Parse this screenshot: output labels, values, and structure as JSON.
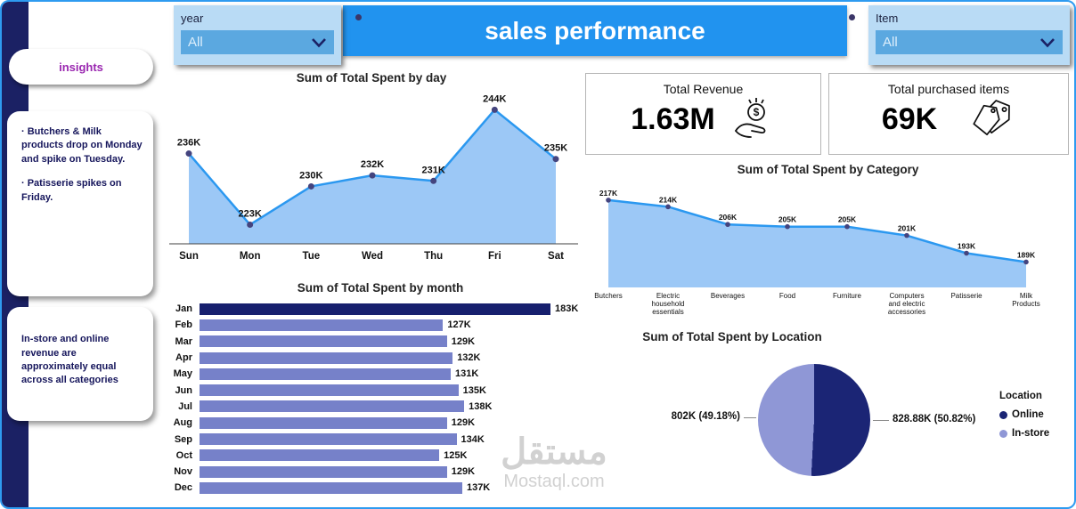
{
  "page": {
    "title": "sales performance"
  },
  "slicers": {
    "year": {
      "label": "year",
      "value": "All"
    },
    "item": {
      "label": "Item",
      "value": "All"
    }
  },
  "sidebar": {
    "button_label": "insights",
    "cards": [
      {
        "lines": [
          "· Butchers & Milk products drop on Monday and spike on Tuesday.",
          "· Patisserie spikes on Friday."
        ]
      },
      {
        "lines": [
          "In-store and online revenue are approximately equal across all categories"
        ]
      }
    ]
  },
  "kpis": [
    {
      "title": "Total Revenue",
      "value": "1.63M",
      "icon": "money-in-hand-icon"
    },
    {
      "title": "Total purchased items",
      "value": "69K",
      "icon": "price-tags-icon"
    }
  ],
  "chart_data": [
    {
      "type": "area",
      "title": "Sum of Total Spent by day",
      "categories": [
        "Sun",
        "Mon",
        "Tue",
        "Wed",
        "Thu",
        "Fri",
        "Sat"
      ],
      "values": [
        236,
        223,
        230,
        232,
        231,
        244,
        235
      ],
      "labels": [
        "236K",
        "223K",
        "230K",
        "232K",
        "231K",
        "244K",
        "235K"
      ],
      "ylim": [
        219.5,
        246.5
      ],
      "unit": "K"
    },
    {
      "type": "area",
      "title": "Sum of Total Spent by Category",
      "categories": [
        [
          "Butchers"
        ],
        [
          "Electric",
          "household",
          "essentials"
        ],
        [
          "Beverages"
        ],
        [
          "Food"
        ],
        [
          "Furniture"
        ],
        [
          "Computers",
          "and electric",
          "accessories"
        ],
        [
          "Patisserie"
        ],
        [
          "Milk",
          "Products"
        ]
      ],
      "values": [
        217,
        214,
        206,
        205,
        205,
        201,
        193,
        189
      ],
      "labels": [
        "217K",
        "214K",
        "206K",
        "205K",
        "205K",
        "201K",
        "193K",
        "189K"
      ],
      "ylim": [
        177.5,
        223
      ],
      "unit": "K"
    },
    {
      "type": "bar",
      "title": "Sum of Total Spent by month",
      "categories": [
        "Jan",
        "Feb",
        "Mar",
        "Apr",
        "May",
        "Jun",
        "Jul",
        "Aug",
        "Sep",
        "Oct",
        "Nov",
        "Dec"
      ],
      "values": [
        183,
        127,
        129,
        132,
        131,
        135,
        138,
        129,
        134,
        125,
        129,
        137
      ],
      "labels": [
        "183K",
        "127K",
        "129K",
        "132K",
        "131K",
        "135K",
        "138K",
        "129K",
        "134K",
        "125K",
        "129K",
        "137K"
      ],
      "highlight_index": 0,
      "unit": "K"
    },
    {
      "type": "pie",
      "title": "Sum of Total Spent by Location",
      "legend_title": "Location",
      "slices": [
        {
          "name": "Online",
          "value": 828.88,
          "pct": 50.82,
          "label": "828.88K (50.82%)",
          "color": "#1b2575"
        },
        {
          "name": "In-store",
          "value": 802,
          "pct": 49.18,
          "label": "802K (49.18%)",
          "color": "#8f97d6"
        }
      ]
    }
  ],
  "theme": {
    "header_blue": "#2193ef",
    "navy": "#1b2164",
    "area_fill": "#9cc8f6",
    "area_line": "#2b98f0",
    "marker": "#44447e",
    "bar": "#7681c9",
    "bar_highlight": "#17206e",
    "slicer_bg": "#b9dbf5",
    "slicer_row": "#5ba8e0",
    "insights_text": "#9a27b0"
  },
  "watermark": {
    "line1": "مستقل",
    "line2": "Mostaql.com"
  }
}
